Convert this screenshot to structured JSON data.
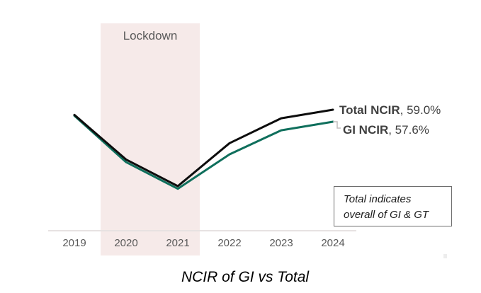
{
  "title": "NCIR of GI vs Total",
  "lockdown_label": "Lockdown",
  "note": {
    "line1": "Total indicates",
    "line2": "overall of GI & GT"
  },
  "labels": {
    "total": {
      "name": "Total NCIR",
      "suffix": ", 59.0%"
    },
    "gi": {
      "name": "GI NCIR",
      "suffix": ", 57.6%"
    }
  },
  "colors": {
    "total_line": "#0d0d0d",
    "gi_line": "#0f6f5c",
    "lockdown_band": "#f6eae9",
    "axis_line": "#e7e2e2",
    "axis_text": "#595959",
    "label_text": "#404040",
    "leader_line": "#c2bdbd"
  },
  "chart_data": {
    "type": "line",
    "title": "NCIR of GI vs Total",
    "categories": [
      "2019",
      "2020",
      "2021",
      "2022",
      "2023",
      "2024"
    ],
    "series": [
      {
        "name": "Total NCIR",
        "color": "#0d0d0d",
        "values": [
          58.4,
          53.2,
          50.1,
          55.1,
          58.0,
          59.0
        ],
        "end_label": "Total NCIR, 59.0%"
      },
      {
        "name": "GI NCIR",
        "color": "#0f6f5c",
        "values": [
          58.3,
          52.9,
          49.8,
          53.8,
          56.6,
          57.6
        ],
        "end_label": "GI NCIR, 57.6%"
      }
    ],
    "xlabel": "",
    "ylabel": "",
    "y_axis_visible": false,
    "grid": false,
    "legend_position": "end-of-line-labels",
    "highlight_band": {
      "label": "Lockdown",
      "from": "2020",
      "to": "2021",
      "color": "#f6eae9"
    },
    "annotation_box": {
      "lines": [
        "Total indicates",
        "overall of GI & GT"
      ]
    }
  }
}
